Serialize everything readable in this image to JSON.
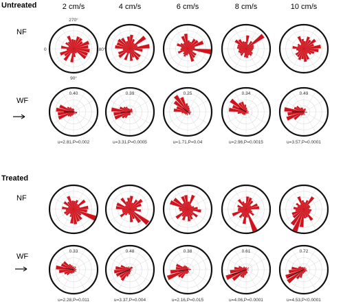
{
  "figure": {
    "sections": [
      {
        "label": "Untreated"
      },
      {
        "label": "Treated"
      }
    ],
    "columns": [
      "2 cm/s",
      "4 cm/s",
      "6 cm/s",
      "8 cm/s",
      "10 cm/s"
    ],
    "row_labels": [
      "NF",
      "WF"
    ],
    "angle_labels": {
      "top": "270°",
      "left": "0",
      "right": "180°",
      "bottom": "90°"
    }
  },
  "colors": {
    "petal": "#d0121c",
    "ring": "#111111",
    "grid": "#d9d9d9",
    "vector": "#1a1a1a"
  },
  "chart_data": [
    {
      "type": "polar-histogram",
      "section": "Untreated",
      "row": "NF",
      "panels": [
        {
          "column": "2 cm/s",
          "dominant_direction_deg": 190,
          "concentrated": false
        },
        {
          "column": "4 cm/s",
          "dominant_direction_deg": 200,
          "concentrated": false
        },
        {
          "column": "6 cm/s",
          "dominant_direction_deg": 190,
          "concentrated": false
        },
        {
          "column": "8 cm/s",
          "dominant_direction_deg": 220,
          "concentrated": false
        },
        {
          "column": "10 cm/s",
          "dominant_direction_deg": 165,
          "concentrated": false
        }
      ]
    },
    {
      "type": "polar-histogram",
      "section": "Untreated",
      "row": "WF",
      "panels": [
        {
          "column": "2 cm/s",
          "r": "0.40",
          "u": "2.81",
          "P": "0.002",
          "stat_text": "u=2.81,P=0.002",
          "dominant_direction_deg": 0,
          "concentrated": true
        },
        {
          "column": "4 cm/s",
          "r": "0.39",
          "u": "3.31",
          "P": "0.0005",
          "stat_text": "u=3.31,P=0.0005",
          "dominant_direction_deg": 5,
          "concentrated": true
        },
        {
          "column": "6 cm/s",
          "r": "0.25",
          "u": "1.71",
          "P": "0.04",
          "stat_text": "u=1.71,P=0.04",
          "dominant_direction_deg": 320,
          "concentrated": true
        },
        {
          "column": "8 cm/s",
          "r": "0.34",
          "u": "2.96",
          "P": "0.0015",
          "stat_text": "u=2.96,P=0.0015",
          "dominant_direction_deg": 330,
          "concentrated": true
        },
        {
          "column": "10 cm/s",
          "r": "0.49",
          "u": "3.57",
          "P": "0.0001",
          "stat_text": "u=3.57,P=0.0001",
          "dominant_direction_deg": 0,
          "concentrated": true
        }
      ]
    },
    {
      "type": "polar-histogram",
      "section": "Treated",
      "row": "NF",
      "panels": [
        {
          "column": "2 cm/s",
          "dominant_direction_deg": 160,
          "concentrated": false
        },
        {
          "column": "4 cm/s",
          "dominant_direction_deg": 120,
          "concentrated": false
        },
        {
          "column": "6 cm/s",
          "dominant_direction_deg": 340,
          "concentrated": false
        },
        {
          "column": "8 cm/s",
          "dominant_direction_deg": 100,
          "concentrated": false
        },
        {
          "column": "10 cm/s",
          "dominant_direction_deg": 60,
          "concentrated": false
        }
      ]
    },
    {
      "type": "polar-histogram",
      "section": "Treated",
      "row": "WF",
      "panels": [
        {
          "column": "2 cm/s",
          "r": "0.33",
          "u": "2.28",
          "P": "0.011",
          "stat_text": "u=2.28,P=0.011",
          "dominant_direction_deg": 350,
          "concentrated": true
        },
        {
          "column": "4 cm/s",
          "r": "0.48",
          "u": "3.37",
          "P": "0.004",
          "stat_text": "u=3.37,P=0.004",
          "dominant_direction_deg": 20,
          "concentrated": true
        },
        {
          "column": "6 cm/s",
          "r": "0.38",
          "u": "2.16",
          "P": "0.015",
          "stat_text": "u=2.16,P=0.015",
          "dominant_direction_deg": 10,
          "concentrated": true
        },
        {
          "column": "8 cm/s",
          "r": "0.61",
          "u": "4.06",
          "P": "0.0001",
          "stat_text": "u=4.06,P=0.0001",
          "dominant_direction_deg": 20,
          "concentrated": true
        },
        {
          "column": "10 cm/s",
          "r": "0.72",
          "u": "4.53",
          "P": "<0.0001",
          "stat_text": "u=4.53,P<0.0001",
          "dominant_direction_deg": 25,
          "concentrated": true
        }
      ]
    }
  ]
}
